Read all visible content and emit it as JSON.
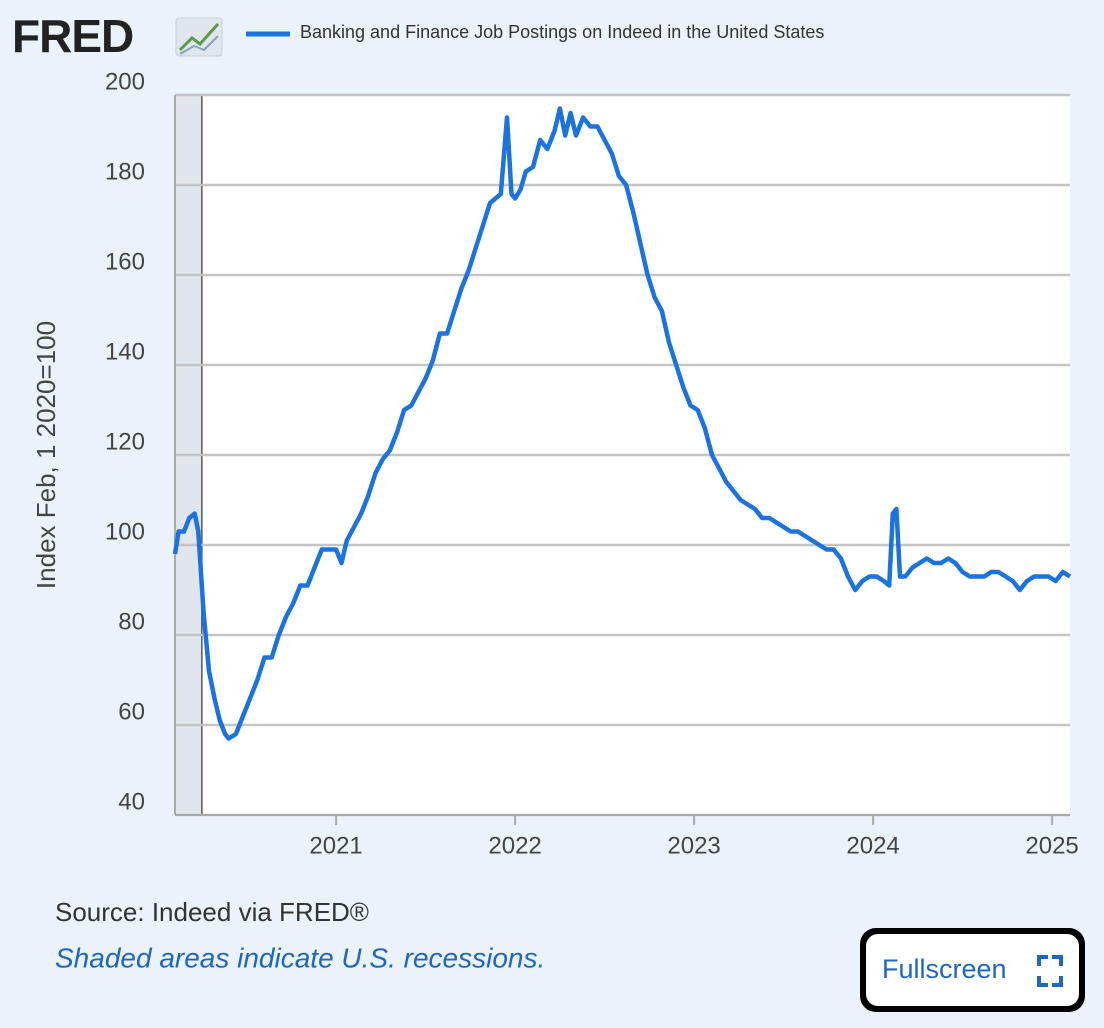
{
  "logo": "FRED",
  "chart_data": {
    "type": "line",
    "legend_position": "top",
    "y_label": "Index Feb, 1 2020=100",
    "source": "Source: Indeed via FRED®",
    "note": "Shaded areas indicate U.S. recessions.",
    "button": "Fullscreen",
    "xlim": [
      2020.1,
      2025.1
    ],
    "xticks": [
      2021,
      2022,
      2023,
      2024,
      2025
    ],
    "ylim": [
      40,
      200
    ],
    "yticks": [
      40,
      60,
      80,
      100,
      120,
      140,
      160,
      180,
      200
    ],
    "grid": true,
    "recessions": [
      [
        2020.1,
        2020.25
      ]
    ],
    "x": [
      2020.1,
      2020.12,
      2020.15,
      2020.18,
      2020.21,
      2020.23,
      2020.26,
      2020.29,
      2020.32,
      2020.35,
      2020.38,
      2020.4,
      2020.44,
      2020.48,
      2020.52,
      2020.56,
      2020.6,
      2020.64,
      2020.68,
      2020.72,
      2020.76,
      2020.8,
      2020.84,
      2020.88,
      2020.92,
      2020.96,
      2021.0,
      2021.03,
      2021.06,
      2021.1,
      2021.14,
      2021.18,
      2021.22,
      2021.26,
      2021.3,
      2021.34,
      2021.38,
      2021.42,
      2021.46,
      2021.5,
      2021.54,
      2021.58,
      2021.62,
      2021.66,
      2021.7,
      2021.74,
      2021.78,
      2021.82,
      2021.86,
      2021.92,
      2021.955,
      2021.98,
      2022.0,
      2022.03,
      2022.06,
      2022.1,
      2022.14,
      2022.18,
      2022.22,
      2022.25,
      2022.28,
      2022.31,
      2022.34,
      2022.38,
      2022.42,
      2022.46,
      2022.5,
      2022.54,
      2022.58,
      2022.62,
      2022.66,
      2022.7,
      2022.74,
      2022.78,
      2022.82,
      2022.86,
      2022.9,
      2022.94,
      2022.98,
      2023.02,
      2023.06,
      2023.1,
      2023.14,
      2023.18,
      2023.22,
      2023.26,
      2023.3,
      2023.34,
      2023.38,
      2023.42,
      2023.46,
      2023.5,
      2023.54,
      2023.58,
      2023.62,
      2023.66,
      2023.7,
      2023.74,
      2023.78,
      2023.82,
      2023.86,
      2023.9,
      2023.94,
      2023.98,
      2024.02,
      2024.06,
      2024.09,
      2024.11,
      2024.13,
      2024.15,
      2024.18,
      2024.22,
      2024.26,
      2024.3,
      2024.34,
      2024.38,
      2024.42,
      2024.46,
      2024.5,
      2024.54,
      2024.58,
      2024.62,
      2024.66,
      2024.7,
      2024.74,
      2024.78,
      2024.82,
      2024.86,
      2024.9,
      2024.94,
      2024.98,
      2025.02,
      2025.06,
      2025.1
    ],
    "series": [
      {
        "name": "Banking and Finance Job Postings on Indeed in the United States",
        "color": "#1a73e0",
        "values": [
          98,
          103,
          103,
          106,
          107,
          103,
          85,
          72,
          66,
          61,
          58,
          57,
          58,
          62,
          66,
          70,
          75,
          75,
          80,
          84,
          87,
          91,
          91,
          95,
          99,
          99,
          99,
          96,
          101,
          104,
          107,
          111,
          116,
          119,
          121,
          125,
          130,
          131,
          134,
          137,
          141,
          147,
          147,
          152,
          157,
          161,
          166,
          171,
          176,
          178,
          195,
          178,
          177,
          179,
          183,
          184,
          190,
          188,
          192,
          197,
          191,
          196,
          191,
          195,
          193,
          193,
          190,
          187,
          182,
          180,
          174,
          167,
          160,
          155,
          152,
          145,
          140,
          135,
          131,
          130,
          126,
          120,
          117,
          114,
          112,
          110,
          109,
          108,
          106,
          106,
          105,
          104,
          103,
          103,
          102,
          101,
          100,
          99,
          99,
          97,
          93,
          90,
          92,
          93,
          93,
          92,
          91,
          107,
          108,
          93,
          93,
          95,
          96,
          97,
          96,
          96,
          97,
          96,
          94,
          93,
          93,
          93,
          94,
          94,
          93,
          92,
          90,
          92,
          93,
          93,
          93,
          92,
          94,
          93
        ]
      }
    ]
  }
}
